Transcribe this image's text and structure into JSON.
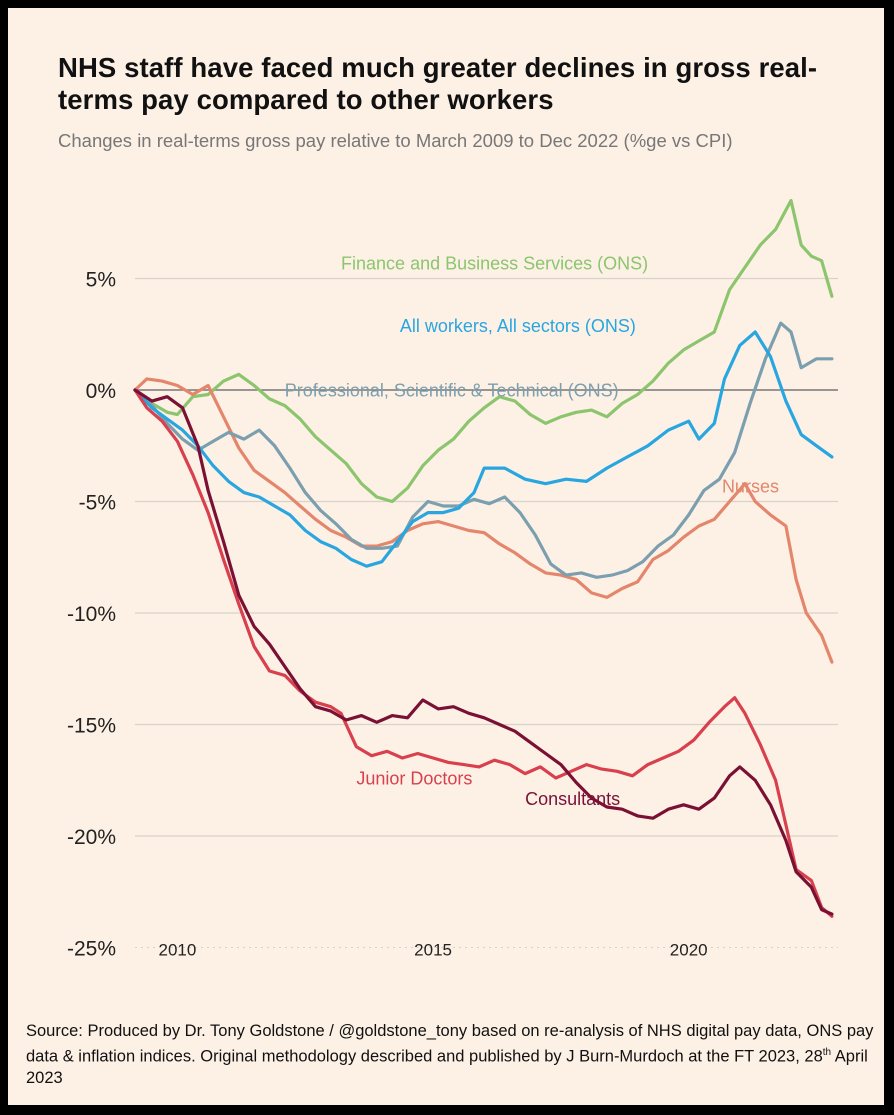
{
  "title": "NHS staff have faced much greater declines in gross real-terms pay compared to other workers",
  "subtitle": "Changes in real-terms gross pay relative to March 2009 to Dec 2022 (%ge vs CPI)",
  "source": {
    "pre": "Source: Produced by Dr. Tony Goldstone / @goldstone_tony based on re-analysis of NHS digital pay data, ONS pay data & inflation indices. Original methodology described and published by J Burn-Murdoch at the FT 2023, 28",
    "sup": "th",
    "post": " April 2023"
  },
  "chart_data": {
    "type": "line",
    "xlim": [
      2009.17,
      2022.92
    ],
    "ylim": [
      -25,
      8
    ],
    "x_ticks": [
      2010,
      2015,
      2020
    ],
    "x_tick_labels": [
      "2010",
      "2015",
      "2020"
    ],
    "y_ticks": [
      5,
      0,
      -5,
      -10,
      -15,
      -20,
      -25
    ],
    "y_tick_labels": [
      "5%",
      "0%",
      "-5%",
      "-10%",
      "-15%",
      "-20%",
      "-25%"
    ],
    "grid": true,
    "legend": "direct labels on lines",
    "series": [
      {
        "name": "Finance and Business Services (ONS)",
        "color": "#8CC56E",
        "label_pos": [
          2013.2,
          5.4
        ],
        "points": [
          [
            2009.17,
            0
          ],
          [
            2009.5,
            -0.6
          ],
          [
            2009.8,
            -1
          ],
          [
            2010.0,
            -1.1
          ],
          [
            2010.3,
            -0.3
          ],
          [
            2010.6,
            -0.2
          ],
          [
            2010.9,
            0.4
          ],
          [
            2011.2,
            0.7
          ],
          [
            2011.5,
            0.2
          ],
          [
            2011.8,
            -0.4
          ],
          [
            2012.1,
            -0.7
          ],
          [
            2012.4,
            -1.3
          ],
          [
            2012.7,
            -2.1
          ],
          [
            2013.0,
            -2.7
          ],
          [
            2013.3,
            -3.3
          ],
          [
            2013.6,
            -4.2
          ],
          [
            2013.9,
            -4.8
          ],
          [
            2014.2,
            -5
          ],
          [
            2014.5,
            -4.4
          ],
          [
            2014.8,
            -3.4
          ],
          [
            2015.1,
            -2.7
          ],
          [
            2015.4,
            -2.2
          ],
          [
            2015.7,
            -1.4
          ],
          [
            2016.0,
            -0.8
          ],
          [
            2016.3,
            -0.3
          ],
          [
            2016.6,
            -0.5
          ],
          [
            2016.9,
            -1.1
          ],
          [
            2017.2,
            -1.5
          ],
          [
            2017.5,
            -1.2
          ],
          [
            2017.8,
            -1
          ],
          [
            2018.1,
            -0.9
          ],
          [
            2018.4,
            -1.2
          ],
          [
            2018.7,
            -0.6
          ],
          [
            2019.0,
            -0.2
          ],
          [
            2019.3,
            0.4
          ],
          [
            2019.6,
            1.2
          ],
          [
            2019.9,
            1.8
          ],
          [
            2020.2,
            2.2
          ],
          [
            2020.5,
            2.6
          ],
          [
            2020.8,
            4.5
          ],
          [
            2021.1,
            5.5
          ],
          [
            2021.4,
            6.5
          ],
          [
            2021.7,
            7.2
          ],
          [
            2022.0,
            8.5
          ],
          [
            2022.2,
            6.5
          ],
          [
            2022.4,
            6
          ],
          [
            2022.6,
            5.8
          ],
          [
            2022.8,
            4.2
          ]
        ]
      },
      {
        "name": "All workers, All sectors (ONS)",
        "color": "#29A6E0",
        "label_pos": [
          2014.35,
          2.6
        ],
        "points": [
          [
            2009.17,
            0
          ],
          [
            2009.5,
            -0.8
          ],
          [
            2009.8,
            -1.3
          ],
          [
            2010.1,
            -1.8
          ],
          [
            2010.4,
            -2.5
          ],
          [
            2010.7,
            -3.4
          ],
          [
            2011.0,
            -4.1
          ],
          [
            2011.3,
            -4.6
          ],
          [
            2011.6,
            -4.8
          ],
          [
            2011.9,
            -5.2
          ],
          [
            2012.2,
            -5.6
          ],
          [
            2012.5,
            -6.3
          ],
          [
            2012.8,
            -6.8
          ],
          [
            2013.1,
            -7.1
          ],
          [
            2013.4,
            -7.6
          ],
          [
            2013.7,
            -7.9
          ],
          [
            2014.0,
            -7.7
          ],
          [
            2014.3,
            -6.8
          ],
          [
            2014.6,
            -5.9
          ],
          [
            2014.9,
            -5.5
          ],
          [
            2015.2,
            -5.5
          ],
          [
            2015.5,
            -5.3
          ],
          [
            2015.8,
            -4.6
          ],
          [
            2016.0,
            -3.5
          ],
          [
            2016.4,
            -3.5
          ],
          [
            2016.8,
            -4
          ],
          [
            2017.2,
            -4.2
          ],
          [
            2017.6,
            -4
          ],
          [
            2018.0,
            -4.1
          ],
          [
            2018.4,
            -3.5
          ],
          [
            2018.8,
            -3
          ],
          [
            2019.2,
            -2.5
          ],
          [
            2019.6,
            -1.8
          ],
          [
            2020.0,
            -1.4
          ],
          [
            2020.2,
            -2.2
          ],
          [
            2020.5,
            -1.5
          ],
          [
            2020.7,
            0.5
          ],
          [
            2021.0,
            2
          ],
          [
            2021.3,
            2.6
          ],
          [
            2021.6,
            1.5
          ],
          [
            2021.9,
            -0.5
          ],
          [
            2022.2,
            -2
          ],
          [
            2022.5,
            -2.5
          ],
          [
            2022.8,
            -3
          ]
        ]
      },
      {
        "name": "Professional, Scientific & Technical (ONS)",
        "color": "#7B9FAF",
        "label_pos": [
          2012.1,
          -0.3
        ],
        "points": [
          [
            2009.17,
            0
          ],
          [
            2009.5,
            -0.7
          ],
          [
            2009.8,
            -1.5
          ],
          [
            2010.1,
            -2.2
          ],
          [
            2010.4,
            -2.7
          ],
          [
            2010.7,
            -2.3
          ],
          [
            2011.0,
            -1.9
          ],
          [
            2011.3,
            -2.2
          ],
          [
            2011.6,
            -1.8
          ],
          [
            2011.9,
            -2.5
          ],
          [
            2012.2,
            -3.5
          ],
          [
            2012.5,
            -4.6
          ],
          [
            2012.8,
            -5.4
          ],
          [
            2013.1,
            -6
          ],
          [
            2013.4,
            -6.7
          ],
          [
            2013.7,
            -7.1
          ],
          [
            2014.0,
            -7.1
          ],
          [
            2014.3,
            -7
          ],
          [
            2014.6,
            -5.7
          ],
          [
            2014.9,
            -5
          ],
          [
            2015.2,
            -5.2
          ],
          [
            2015.5,
            -5.2
          ],
          [
            2015.8,
            -4.9
          ],
          [
            2016.1,
            -5.1
          ],
          [
            2016.4,
            -4.8
          ],
          [
            2016.7,
            -5.5
          ],
          [
            2017.0,
            -6.5
          ],
          [
            2017.3,
            -7.8
          ],
          [
            2017.6,
            -8.3
          ],
          [
            2017.9,
            -8.2
          ],
          [
            2018.2,
            -8.4
          ],
          [
            2018.5,
            -8.3
          ],
          [
            2018.8,
            -8.1
          ],
          [
            2019.1,
            -7.7
          ],
          [
            2019.4,
            -7
          ],
          [
            2019.7,
            -6.5
          ],
          [
            2020.0,
            -5.6
          ],
          [
            2020.3,
            -4.5
          ],
          [
            2020.6,
            -4
          ],
          [
            2020.9,
            -2.8
          ],
          [
            2021.2,
            -0.6
          ],
          [
            2021.5,
            1.4
          ],
          [
            2021.8,
            3
          ],
          [
            2022.0,
            2.6
          ],
          [
            2022.2,
            1
          ],
          [
            2022.5,
            1.4
          ],
          [
            2022.8,
            1.4
          ]
        ]
      },
      {
        "name": "Nurses",
        "color": "#E4866C",
        "label_pos": [
          2020.65,
          -4.6
        ],
        "points": [
          [
            2009.17,
            0
          ],
          [
            2009.4,
            0.5
          ],
          [
            2009.7,
            0.4
          ],
          [
            2010.0,
            0.2
          ],
          [
            2010.3,
            -0.2
          ],
          [
            2010.6,
            0.2
          ],
          [
            2010.9,
            -1.2
          ],
          [
            2011.2,
            -2.6
          ],
          [
            2011.5,
            -3.6
          ],
          [
            2011.8,
            -4.1
          ],
          [
            2012.1,
            -4.6
          ],
          [
            2012.4,
            -5.2
          ],
          [
            2012.7,
            -5.8
          ],
          [
            2013.0,
            -6.3
          ],
          [
            2013.3,
            -6.6
          ],
          [
            2013.6,
            -7
          ],
          [
            2013.9,
            -7
          ],
          [
            2014.2,
            -6.8
          ],
          [
            2014.5,
            -6.3
          ],
          [
            2014.8,
            -6
          ],
          [
            2015.1,
            -5.9
          ],
          [
            2015.4,
            -6.1
          ],
          [
            2015.7,
            -6.3
          ],
          [
            2016.0,
            -6.4
          ],
          [
            2016.3,
            -6.9
          ],
          [
            2016.6,
            -7.3
          ],
          [
            2016.9,
            -7.8
          ],
          [
            2017.2,
            -8.2
          ],
          [
            2017.5,
            -8.3
          ],
          [
            2017.8,
            -8.5
          ],
          [
            2018.1,
            -9.1
          ],
          [
            2018.4,
            -9.3
          ],
          [
            2018.7,
            -8.9
          ],
          [
            2019.0,
            -8.6
          ],
          [
            2019.3,
            -7.6
          ],
          [
            2019.6,
            -7.2
          ],
          [
            2019.9,
            -6.6
          ],
          [
            2020.2,
            -6.1
          ],
          [
            2020.5,
            -5.8
          ],
          [
            2020.8,
            -5
          ],
          [
            2021.1,
            -4.2
          ],
          [
            2021.3,
            -5
          ],
          [
            2021.6,
            -5.6
          ],
          [
            2021.9,
            -6.1
          ],
          [
            2022.1,
            -8.5
          ],
          [
            2022.3,
            -10
          ],
          [
            2022.6,
            -11
          ],
          [
            2022.8,
            -12.2
          ]
        ]
      },
      {
        "name": "Junior Doctors",
        "color": "#D9404E",
        "label_pos": [
          2013.5,
          -17.7
        ],
        "points": [
          [
            2009.17,
            0
          ],
          [
            2009.4,
            -0.8
          ],
          [
            2009.7,
            -1.4
          ],
          [
            2010.0,
            -2.3
          ],
          [
            2010.3,
            -3.8
          ],
          [
            2010.6,
            -5.5
          ],
          [
            2010.9,
            -7.6
          ],
          [
            2011.2,
            -9.6
          ],
          [
            2011.5,
            -11.5
          ],
          [
            2011.8,
            -12.6
          ],
          [
            2012.1,
            -12.8
          ],
          [
            2012.4,
            -13.5
          ],
          [
            2012.7,
            -14
          ],
          [
            2013.0,
            -14.2
          ],
          [
            2013.2,
            -14.5
          ],
          [
            2013.5,
            -16
          ],
          [
            2013.8,
            -16.4
          ],
          [
            2014.1,
            -16.2
          ],
          [
            2014.4,
            -16.5
          ],
          [
            2014.7,
            -16.3
          ],
          [
            2015.0,
            -16.5
          ],
          [
            2015.3,
            -16.7
          ],
          [
            2015.6,
            -16.8
          ],
          [
            2015.9,
            -16.9
          ],
          [
            2016.2,
            -16.6
          ],
          [
            2016.5,
            -16.8
          ],
          [
            2016.8,
            -17.2
          ],
          [
            2017.1,
            -16.9
          ],
          [
            2017.4,
            -17.4
          ],
          [
            2017.7,
            -17.1
          ],
          [
            2018.0,
            -16.8
          ],
          [
            2018.3,
            -17
          ],
          [
            2018.6,
            -17.1
          ],
          [
            2018.9,
            -17.3
          ],
          [
            2019.2,
            -16.8
          ],
          [
            2019.5,
            -16.5
          ],
          [
            2019.8,
            -16.2
          ],
          [
            2020.1,
            -15.7
          ],
          [
            2020.4,
            -14.9
          ],
          [
            2020.7,
            -14.2
          ],
          [
            2020.9,
            -13.8
          ],
          [
            2021.1,
            -14.5
          ],
          [
            2021.4,
            -15.9
          ],
          [
            2021.7,
            -17.5
          ],
          [
            2021.9,
            -19.5
          ],
          [
            2022.1,
            -21.5
          ],
          [
            2022.4,
            -22
          ],
          [
            2022.6,
            -23.2
          ],
          [
            2022.8,
            -23.6
          ]
        ]
      },
      {
        "name": "Consultants",
        "color": "#7A1135",
        "label_pos": [
          2016.8,
          -18.6
        ],
        "points": [
          [
            2009.17,
            0
          ],
          [
            2009.5,
            -0.5
          ],
          [
            2009.8,
            -0.3
          ],
          [
            2010.1,
            -0.8
          ],
          [
            2010.4,
            -2.5
          ],
          [
            2010.6,
            -4.5
          ],
          [
            2010.9,
            -6.8
          ],
          [
            2011.2,
            -9.2
          ],
          [
            2011.5,
            -10.6
          ],
          [
            2011.8,
            -11.4
          ],
          [
            2012.1,
            -12.4
          ],
          [
            2012.4,
            -13.4
          ],
          [
            2012.7,
            -14.2
          ],
          [
            2013.0,
            -14.4
          ],
          [
            2013.3,
            -14.8
          ],
          [
            2013.6,
            -14.6
          ],
          [
            2013.9,
            -14.9
          ],
          [
            2014.2,
            -14.6
          ],
          [
            2014.5,
            -14.7
          ],
          [
            2014.8,
            -13.9
          ],
          [
            2015.1,
            -14.3
          ],
          [
            2015.4,
            -14.2
          ],
          [
            2015.7,
            -14.5
          ],
          [
            2016.0,
            -14.7
          ],
          [
            2016.3,
            -15
          ],
          [
            2016.6,
            -15.3
          ],
          [
            2016.9,
            -15.8
          ],
          [
            2017.2,
            -16.3
          ],
          [
            2017.5,
            -16.8
          ],
          [
            2017.8,
            -17.6
          ],
          [
            2018.1,
            -18.3
          ],
          [
            2018.4,
            -18.7
          ],
          [
            2018.7,
            -18.8
          ],
          [
            2019.0,
            -19.1
          ],
          [
            2019.3,
            -19.2
          ],
          [
            2019.6,
            -18.8
          ],
          [
            2019.9,
            -18.6
          ],
          [
            2020.2,
            -18.8
          ],
          [
            2020.5,
            -18.3
          ],
          [
            2020.8,
            -17.3
          ],
          [
            2021.0,
            -16.9
          ],
          [
            2021.3,
            -17.5
          ],
          [
            2021.6,
            -18.6
          ],
          [
            2021.9,
            -20.2
          ],
          [
            2022.1,
            -21.6
          ],
          [
            2022.4,
            -22.3
          ],
          [
            2022.6,
            -23.3
          ],
          [
            2022.8,
            -23.5
          ]
        ]
      }
    ]
  }
}
